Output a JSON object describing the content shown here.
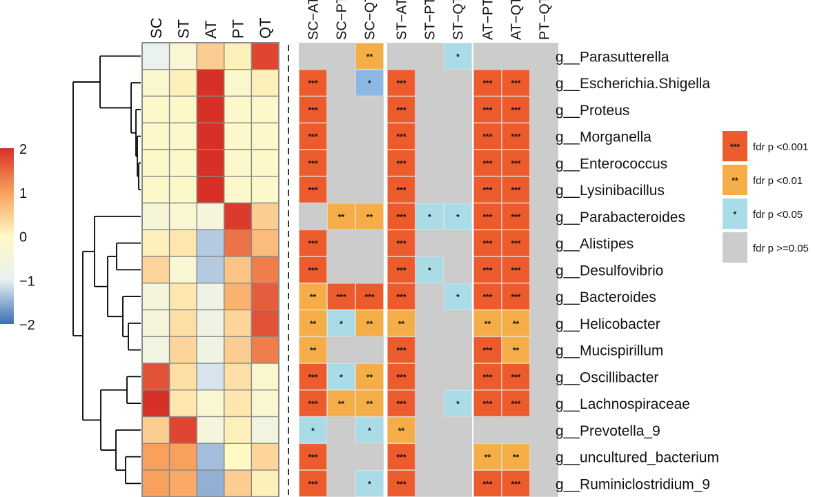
{
  "chart_data": {
    "type": "heatmap",
    "genera": [
      "g__Parasutterella",
      "g__Escherichia.Shigella",
      "g__Proteus",
      "g__Morganella",
      "g__Enterococcus",
      "g__Lysinibacillus",
      "g__Parabacteroides",
      "g__Alistipes",
      "g__Desulfovibrio",
      "g__Bacteroides",
      "g__Helicobacter",
      "g__Mucispirillum",
      "g__Oscillibacter",
      "g__Lachnospiraceae",
      "g__Prevotella_9",
      "g__uncultured_bacterium",
      "g__Ruminiclostridium_9"
    ],
    "groups": [
      "SC",
      "ST",
      "AT",
      "PT",
      "QT"
    ],
    "zscores": [
      [
        -0.9,
        -0.3,
        0.5,
        0.1,
        1.8
      ],
      [
        -0.2,
        0.1,
        2.0,
        -0.2,
        0.1
      ],
      [
        -0.1,
        -0.1,
        2.0,
        -0.1,
        -0.1
      ],
      [
        -0.1,
        -0.1,
        2.0,
        -0.1,
        -0.1
      ],
      [
        -0.1,
        -0.1,
        2.0,
        -0.1,
        -0.1
      ],
      [
        -0.1,
        -0.1,
        2.0,
        -0.1,
        -0.1
      ],
      [
        -0.4,
        -0.3,
        -0.5,
        1.9,
        0.5
      ],
      [
        0.1,
        0.2,
        -1.3,
        1.4,
        0.7
      ],
      [
        0.4,
        -0.3,
        -1.3,
        0.6,
        1.3
      ],
      [
        -0.5,
        0.2,
        -0.7,
        0.8,
        1.6
      ],
      [
        -0.5,
        0.3,
        -0.7,
        0.4,
        1.7
      ],
      [
        -0.6,
        0.4,
        -0.7,
        0.5,
        1.3
      ],
      [
        1.7,
        0.3,
        -1.1,
        0.3,
        -0.2
      ],
      [
        2.0,
        0.2,
        -0.3,
        0.2,
        -0.3
      ],
      [
        0.5,
        1.8,
        -0.5,
        0.1,
        -0.6
      ],
      [
        1.0,
        1.0,
        -1.4,
        0.0,
        0.4
      ],
      [
        1.0,
        0.9,
        -1.5,
        0.5,
        0.1
      ]
    ],
    "comparisons": [
      "SC−AT",
      "SC−PT",
      "SC−QT",
      "ST−AT",
      "ST−PT",
      "ST−QT",
      "AT−PT",
      "AT−QT",
      "PT−QT"
    ],
    "significance": [
      [
        "",
        "",
        "**",
        "",
        "",
        "*",
        "",
        "",
        ""
      ],
      [
        "***",
        "",
        "*",
        "***",
        "",
        "",
        "***",
        "***",
        ""
      ],
      [
        "***",
        "",
        "",
        "***",
        "",
        "",
        "***",
        "***",
        ""
      ],
      [
        "***",
        "",
        "",
        "***",
        "",
        "",
        "***",
        "***",
        ""
      ],
      [
        "***",
        "",
        "",
        "***",
        "",
        "",
        "***",
        "***",
        ""
      ],
      [
        "***",
        "",
        "",
        "***",
        "",
        "",
        "***",
        "***",
        ""
      ],
      [
        "",
        "**",
        "**",
        "***",
        "*",
        "*",
        "***",
        "***",
        ""
      ],
      [
        "***",
        "",
        "",
        "***",
        "",
        "",
        "***",
        "***",
        ""
      ],
      [
        "***",
        "",
        "",
        "***",
        "*",
        "",
        "***",
        "***",
        ""
      ],
      [
        "**",
        "***",
        "***",
        "***",
        "",
        "*",
        "***",
        "***",
        ""
      ],
      [
        "**",
        "*",
        "**",
        "**",
        "",
        "",
        "**",
        "**",
        ""
      ],
      [
        "**",
        "",
        "",
        "***",
        "",
        "",
        "***",
        "**",
        ""
      ],
      [
        "***",
        "*",
        "**",
        "***",
        "",
        "",
        "***",
        "***",
        ""
      ],
      [
        "***",
        "**",
        "**",
        "***",
        "",
        "*",
        "***",
        "***",
        ""
      ],
      [
        "*",
        "",
        "*",
        "**",
        "",
        "",
        "",
        "",
        ""
      ],
      [
        "***",
        "",
        "",
        "***",
        "",
        "",
        "**",
        "**",
        ""
      ],
      [
        "***",
        "",
        "*",
        "***",
        "",
        "",
        "***",
        "***",
        ""
      ]
    ],
    "fill_override": [
      {
        "row": 1,
        "col": 2,
        "color": "#8eb8e4"
      }
    ],
    "color_scale": {
      "min": -2,
      "max": 2,
      "ticks": [
        2,
        1,
        0,
        -1,
        -2
      ],
      "tick_labels": [
        "2",
        "1",
        "0",
        "−1",
        "−2"
      ]
    },
    "legend": [
      {
        "symbol": "***",
        "label": "fdr p <0.001",
        "color": "#ec5b2c"
      },
      {
        "symbol": "**",
        "label": "fdr p <0.01",
        "color": "#f5ae47"
      },
      {
        "symbol": "*",
        "label": "fdr p <0.05",
        "color": "#a9dce6"
      },
      {
        "symbol": "",
        "label": "fdr p >=0.05",
        "color": "#cccccc"
      }
    ],
    "sig_colors": {
      "***": "#ec5b2c",
      "**": "#f5ae47",
      "*": "#a9dce6",
      "": "#cccccc"
    },
    "palette": [
      "#3b6fb6",
      "#e8f1f2",
      "#fff9c4",
      "#f9a05c",
      "#d73027"
    ]
  }
}
